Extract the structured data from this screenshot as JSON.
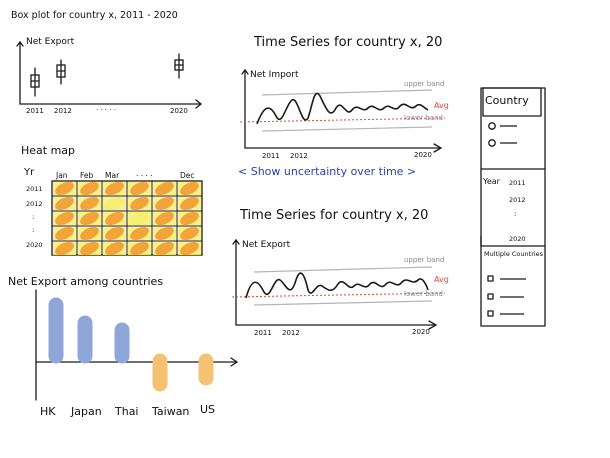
{
  "boxplot": {
    "title": "Box plot for country x, 2011 - 2020",
    "ylabel": "Net Export",
    "ticks": [
      "2011",
      "2012",
      ". . . . .",
      "2020"
    ]
  },
  "heatmap": {
    "title": "Heat map",
    "row_axis": "Yr",
    "rows": [
      "2011",
      "2012",
      ":",
      ":",
      "2020"
    ],
    "columns": [
      "Jan",
      "Feb",
      "Mar",
      ". . . .",
      "Dec"
    ]
  },
  "bars": {
    "title": "Net Export among countries",
    "categories": [
      "HK",
      "Japan",
      "Thai",
      "Taiwan",
      "US"
    ]
  },
  "ts1": {
    "title": "Time Series for country x, 20",
    "ylabel": "Net Import",
    "upper": "upper band",
    "avg": "Avg",
    "lower": "lower band",
    "ticks": [
      "2011",
      "2012",
      "2020"
    ],
    "note": "< Show uncertainty over time >"
  },
  "ts2": {
    "title": "Time Series for country x, 20",
    "ylabel": "Net Export",
    "upper": "upper band",
    "avg": "Avg",
    "lower": "lower band",
    "ticks": [
      "2011",
      "2012",
      "2020"
    ]
  },
  "panel": {
    "country_header": "Country",
    "year_label": "Year",
    "years": [
      "2011",
      "2012",
      ":",
      "2020"
    ],
    "multi_header": "Multiple Countries"
  },
  "colors": {
    "ink": "#1a1a1a",
    "bar_blue": "#8fa6d8",
    "bar_orange": "#f5c173",
    "heat_orange": "#f2a33a",
    "heat_yellow": "#f6ef72",
    "avg_red": "#e0483c",
    "band_gray": "#b5b5b5",
    "note_blue": "#2a3fb8"
  }
}
